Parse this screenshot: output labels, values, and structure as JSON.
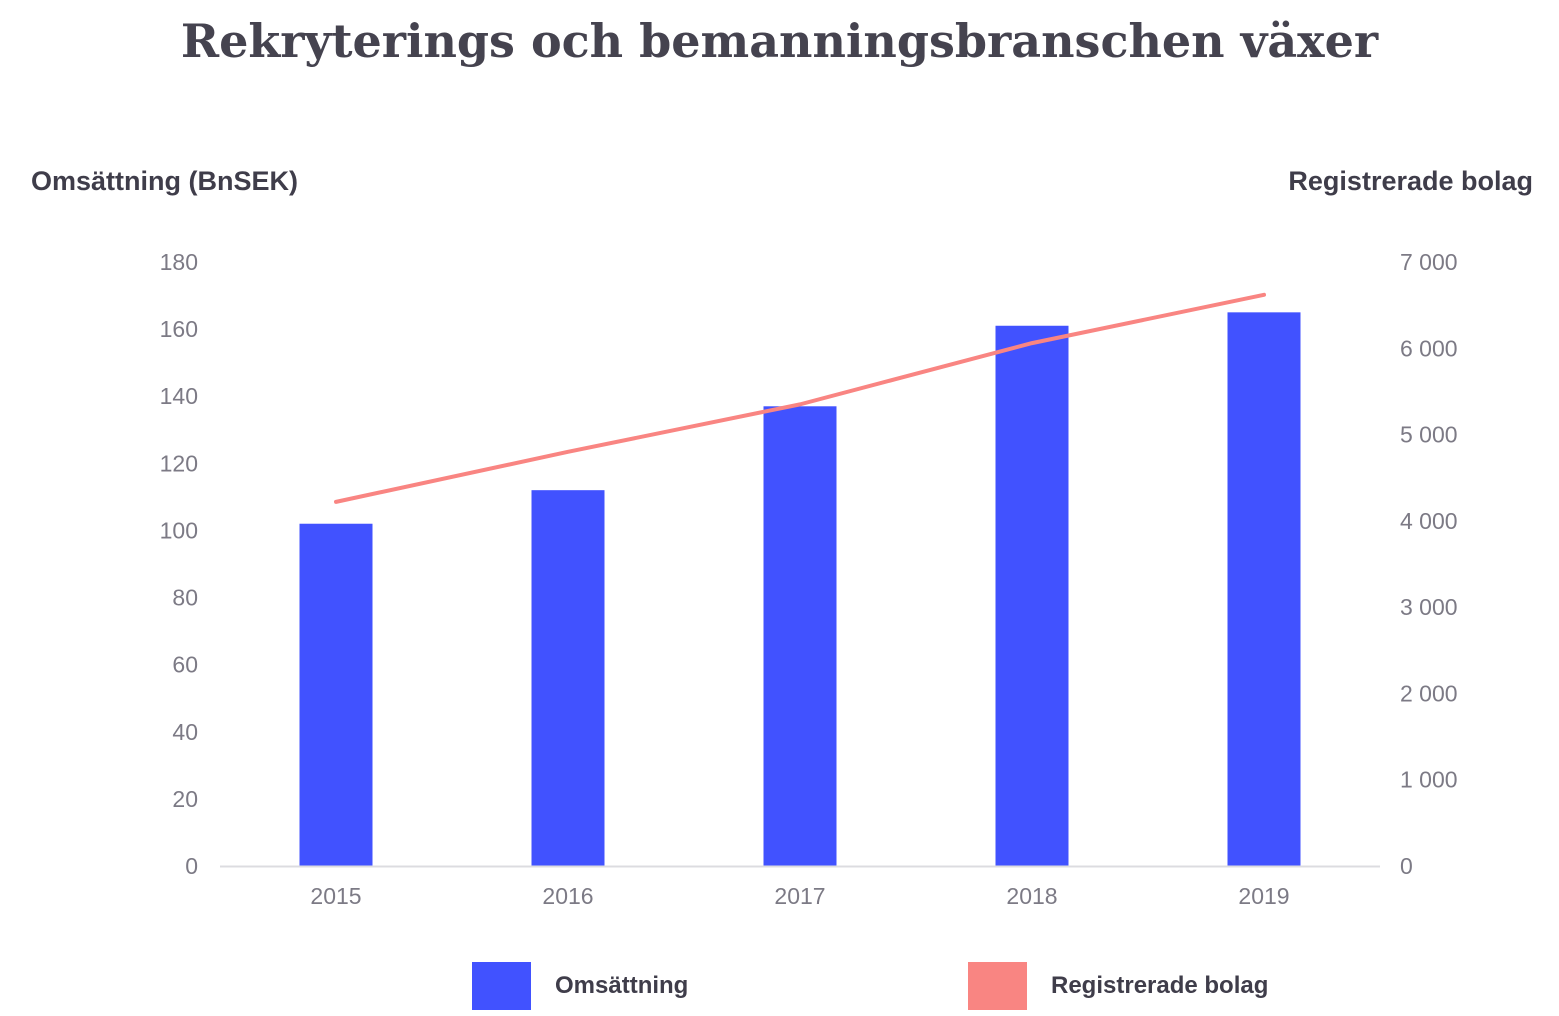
{
  "chart_data": {
    "type": "bar",
    "title": "Rekryterings och bemanningsbranschen växer",
    "categories": [
      "2015",
      "2016",
      "2017",
      "2018",
      "2019"
    ],
    "series": [
      {
        "name": "Omsättning",
        "type": "bar",
        "axis": "left",
        "color": "#4152ff",
        "values": [
          102,
          112,
          137,
          161,
          165
        ]
      },
      {
        "name": "Registrerade bolag",
        "type": "line",
        "axis": "right",
        "color": "#f98582",
        "values": [
          4220,
          4800,
          5350,
          6060,
          6620
        ]
      }
    ],
    "ylabel": "Omsättning (BnSEK)",
    "y2label": "Registrerade bolag",
    "ylim": [
      0,
      180
    ],
    "y2lim": [
      0,
      7000
    ],
    "yticks": [
      0,
      20,
      40,
      60,
      80,
      100,
      120,
      140,
      160,
      180
    ],
    "yticklabels": [
      "0",
      "20",
      "40",
      "60",
      "80",
      "100",
      "120",
      "140",
      "160",
      "180"
    ],
    "y2ticks": [
      0,
      1000,
      2000,
      3000,
      4000,
      5000,
      6000,
      7000
    ],
    "y2ticklabels": [
      "0",
      "1 000",
      "2 000",
      "3 000",
      "4 000",
      "5 000",
      "6 000",
      "7 000"
    ],
    "grid": false,
    "legend": "bottom-center",
    "colors": {
      "axis_line": "#dcdce0",
      "tick_text": "#7c7a85",
      "title_text": "#45434f"
    }
  }
}
